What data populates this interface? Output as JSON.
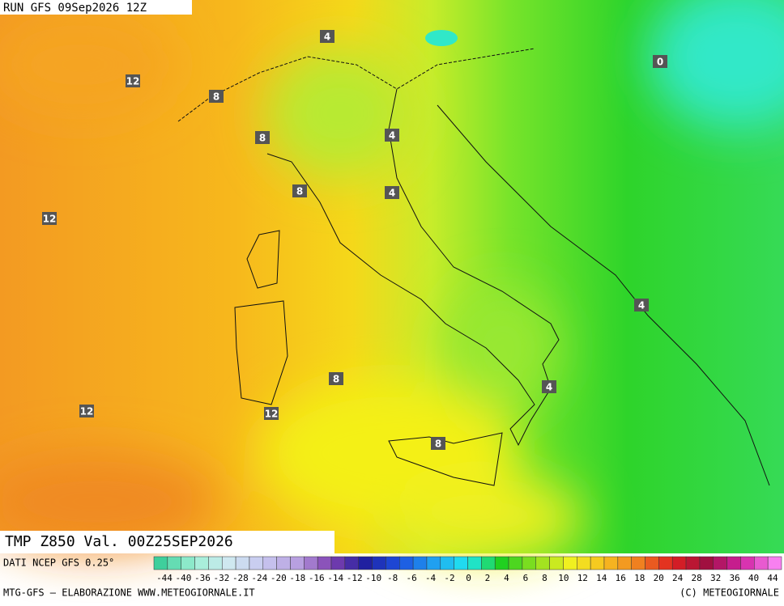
{
  "header": {
    "run": "RUN GFS 09Sep2026 12Z",
    "field": "TMP Z850 Val. 00Z25SEP2026"
  },
  "map": {
    "contour_labels": [
      4,
      0,
      12,
      8,
      8,
      4,
      8,
      4,
      12,
      4,
      8,
      4,
      12,
      12,
      8
    ]
  },
  "colorbar": {
    "labels": [
      -44,
      -40,
      -36,
      -32,
      -28,
      -24,
      -20,
      -18,
      -16,
      -14,
      -12,
      -10,
      -8,
      -6,
      -4,
      -2,
      0,
      2,
      4,
      6,
      8,
      10,
      12,
      14,
      16,
      18,
      20,
      24,
      28,
      32,
      36,
      40,
      44
    ]
  },
  "footer": {
    "source": "DATI NCEP GFS 0.25°",
    "credit": "MTG-GFS – ELABORAZIONE WWW.METEOGIORNALE.IT",
    "copyright": "(C) METEOGIORNALE"
  }
}
